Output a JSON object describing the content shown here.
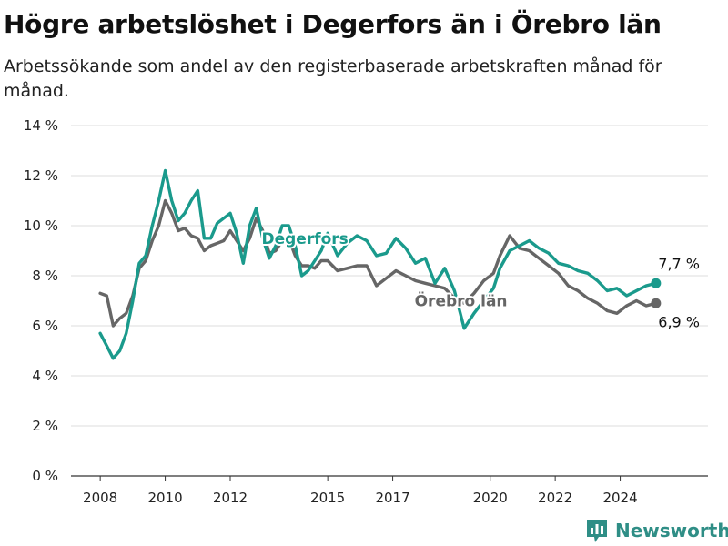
{
  "chart_data": {
    "type": "line",
    "title": "Högre arbetslöshet i Degerfors än i Örebro län",
    "subtitle": "Arbetssökande som andel av den registerbaserade arbetskraften månad för månad.",
    "xlabel": "",
    "ylabel": "",
    "ylim": [
      0,
      14
    ],
    "xlim": [
      2007.1,
      2026.7
    ],
    "y_ticks": [
      0,
      2,
      4,
      6,
      8,
      10,
      12,
      14
    ],
    "y_tick_labels": [
      "0 %",
      "2 %",
      "4 %",
      "6 %",
      "8 %",
      "10 %",
      "12 %",
      "14 %"
    ],
    "x_ticks": [
      2008,
      2010,
      2012,
      2015,
      2017,
      2020,
      2022,
      2024
    ],
    "x_tick_labels": [
      "2008",
      "2010",
      "2012",
      "2015",
      "2017",
      "2020",
      "2022",
      "2024"
    ],
    "grid": true,
    "legend": "none (direct labels on lines)",
    "series": [
      {
        "name": "Degerfors",
        "color": "#1a9a8c",
        "end_label": "7,7 %",
        "x": [
          2008.0,
          2008.2,
          2008.4,
          2008.6,
          2008.8,
          2009.0,
          2009.2,
          2009.4,
          2009.6,
          2009.8,
          2010.0,
          2010.2,
          2010.4,
          2010.6,
          2010.8,
          2011.0,
          2011.2,
          2011.4,
          2011.6,
          2011.8,
          2012.0,
          2012.2,
          2012.4,
          2012.6,
          2012.8,
          2013.0,
          2013.2,
          2013.4,
          2013.6,
          2013.8,
          2014.0,
          2014.2,
          2014.4,
          2014.6,
          2014.8,
          2015.0,
          2015.3,
          2015.6,
          2015.9,
          2016.2,
          2016.5,
          2016.8,
          2017.1,
          2017.4,
          2017.7,
          2018.0,
          2018.3,
          2018.6,
          2018.9,
          2019.2,
          2019.5,
          2019.8,
          2020.1,
          2020.3,
          2020.6,
          2020.9,
          2021.2,
          2021.5,
          2021.8,
          2022.1,
          2022.4,
          2022.7,
          2023.0,
          2023.3,
          2023.6,
          2023.9,
          2024.2,
          2024.5,
          2024.8,
          2025.1
        ],
        "y": [
          5.7,
          5.2,
          4.7,
          5.0,
          5.7,
          7.0,
          8.5,
          8.8,
          10.0,
          11.0,
          12.2,
          11.0,
          10.2,
          10.5,
          11.0,
          11.4,
          9.5,
          9.5,
          10.1,
          10.3,
          10.5,
          9.7,
          8.5,
          10.0,
          10.7,
          9.5,
          8.7,
          9.2,
          10.0,
          10.0,
          9.2,
          8.0,
          8.2,
          8.6,
          9.0,
          9.7,
          8.8,
          9.3,
          9.6,
          9.4,
          8.8,
          8.9,
          9.5,
          9.1,
          8.5,
          8.7,
          7.7,
          8.3,
          7.4,
          5.9,
          6.5,
          7.0,
          7.5,
          8.3,
          9.0,
          9.2,
          9.4,
          9.1,
          8.9,
          8.5,
          8.4,
          8.2,
          8.1,
          7.8,
          7.4,
          7.5,
          7.2,
          7.4,
          7.6,
          7.7
        ]
      },
      {
        "name": "Örebro län",
        "color": "#666666",
        "end_label": "6,9 %",
        "x": [
          2008.0,
          2008.2,
          2008.4,
          2008.6,
          2008.8,
          2009.0,
          2009.2,
          2009.4,
          2009.6,
          2009.8,
          2010.0,
          2010.2,
          2010.4,
          2010.6,
          2010.8,
          2011.0,
          2011.2,
          2011.4,
          2011.6,
          2011.8,
          2012.0,
          2012.2,
          2012.4,
          2012.6,
          2012.8,
          2013.0,
          2013.2,
          2013.4,
          2013.6,
          2013.8,
          2014.0,
          2014.2,
          2014.4,
          2014.6,
          2014.8,
          2015.0,
          2015.3,
          2015.6,
          2015.9,
          2016.2,
          2016.5,
          2016.8,
          2017.1,
          2017.4,
          2017.7,
          2018.0,
          2018.3,
          2018.6,
          2018.9,
          2019.2,
          2019.5,
          2019.8,
          2020.1,
          2020.3,
          2020.6,
          2020.9,
          2021.2,
          2021.5,
          2021.8,
          2022.1,
          2022.4,
          2022.7,
          2023.0,
          2023.3,
          2023.6,
          2023.9,
          2024.2,
          2024.5,
          2024.8,
          2025.1
        ],
        "y": [
          7.3,
          7.2,
          6.0,
          6.3,
          6.5,
          7.2,
          8.3,
          8.6,
          9.4,
          10.0,
          11.0,
          10.5,
          9.8,
          9.9,
          9.6,
          9.5,
          9.0,
          9.2,
          9.3,
          9.4,
          9.8,
          9.4,
          9.0,
          9.5,
          10.3,
          9.8,
          8.9,
          9.0,
          9.4,
          9.5,
          8.8,
          8.4,
          8.4,
          8.3,
          8.6,
          8.6,
          8.2,
          8.3,
          8.4,
          8.4,
          7.6,
          7.9,
          8.2,
          8.0,
          7.8,
          7.7,
          7.6,
          7.5,
          7.1,
          6.9,
          7.3,
          7.8,
          8.1,
          8.8,
          9.6,
          9.1,
          9.0,
          8.7,
          8.4,
          8.1,
          7.6,
          7.4,
          7.1,
          6.9,
          6.6,
          6.5,
          6.8,
          7.0,
          6.8,
          6.9
        ]
      }
    ],
    "line_labels": [
      {
        "series": "Degerfors",
        "text": "Degerfors",
        "x": 2014.3,
        "y": 9.5
      },
      {
        "series": "Örebro län",
        "text": "Örebro län",
        "x": 2019.1,
        "y": 7.0
      }
    ]
  },
  "branding": {
    "name": "Newsworthy",
    "icon": "newsworthy-logo-icon",
    "color": "#2f8e86"
  }
}
